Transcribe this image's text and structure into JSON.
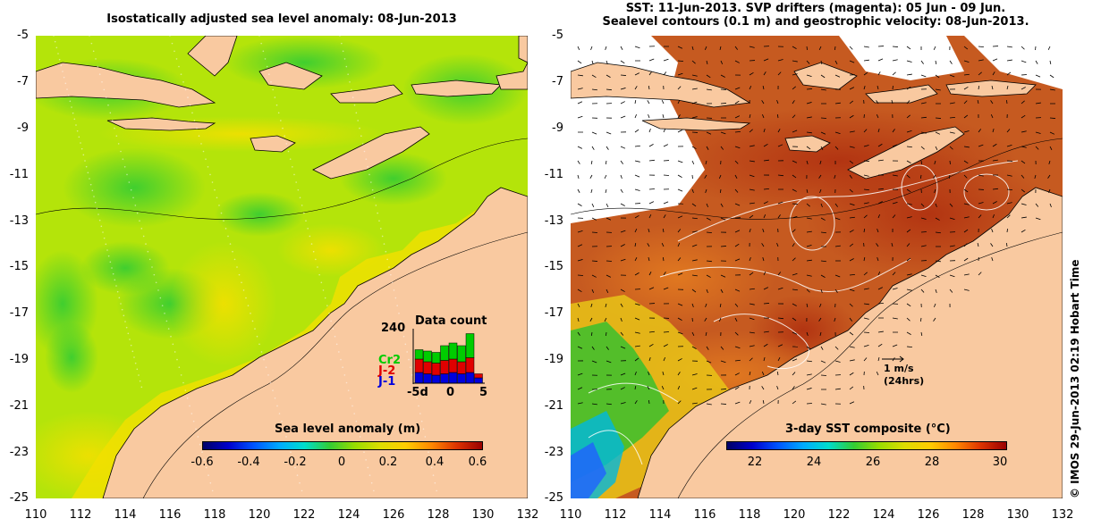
{
  "left_panel": {
    "title": "Isostatically adjusted sea level anomaly: 08-Jun-2013",
    "colorbar": {
      "title": "Sea level anomaly (m)",
      "ticks": [
        "-0.6",
        "-0.4",
        "-0.2",
        "0",
        "0.2",
        "0.4",
        "0.6"
      ],
      "range": [
        -0.6,
        0.6
      ]
    },
    "data_count": {
      "title": "Data count",
      "ymax_label": "240",
      "x_labels": [
        "-5d",
        "0",
        "5"
      ],
      "missions": [
        {
          "name": "Cr2",
          "color": "#00cc00"
        },
        {
          "name": "J-2",
          "color": "#e00000"
        },
        {
          "name": "J-1",
          "color": "#0000dd"
        }
      ]
    }
  },
  "right_panel": {
    "title_line1": "SST: 11-Jun-2013. SVP drifters (magenta): 05 Jun - 09 Jun.",
    "title_line2": "Sealevel contours (0.1 m) and geostrophic velocity: 08-Jun-2013.",
    "colorbar": {
      "title": "3-day SST composite (°C)",
      "ticks": [
        "22",
        "24",
        "26",
        "28",
        "30"
      ],
      "range": [
        21,
        30.5
      ]
    },
    "velocity_scale": {
      "speed": "1 m/s",
      "duration": "(24hrs)"
    }
  },
  "axes": {
    "x_ticks": [
      "110",
      "112",
      "114",
      "116",
      "118",
      "120",
      "122",
      "124",
      "126",
      "128",
      "130",
      "132"
    ],
    "y_ticks": [
      "-5",
      "-7",
      "-9",
      "-11",
      "-13",
      "-15",
      "-17",
      "-19",
      "-21",
      "-23",
      "-25"
    ],
    "lon_range": [
      110,
      132
    ],
    "lat_range": [
      -25,
      -5
    ]
  },
  "credit": "© IMOS 29-Jun-2013 02:19 Hobart Time",
  "colors": {
    "land": "#f9c9a0",
    "sla_background": "#b8e400",
    "sst_background": "#c25a22"
  }
}
